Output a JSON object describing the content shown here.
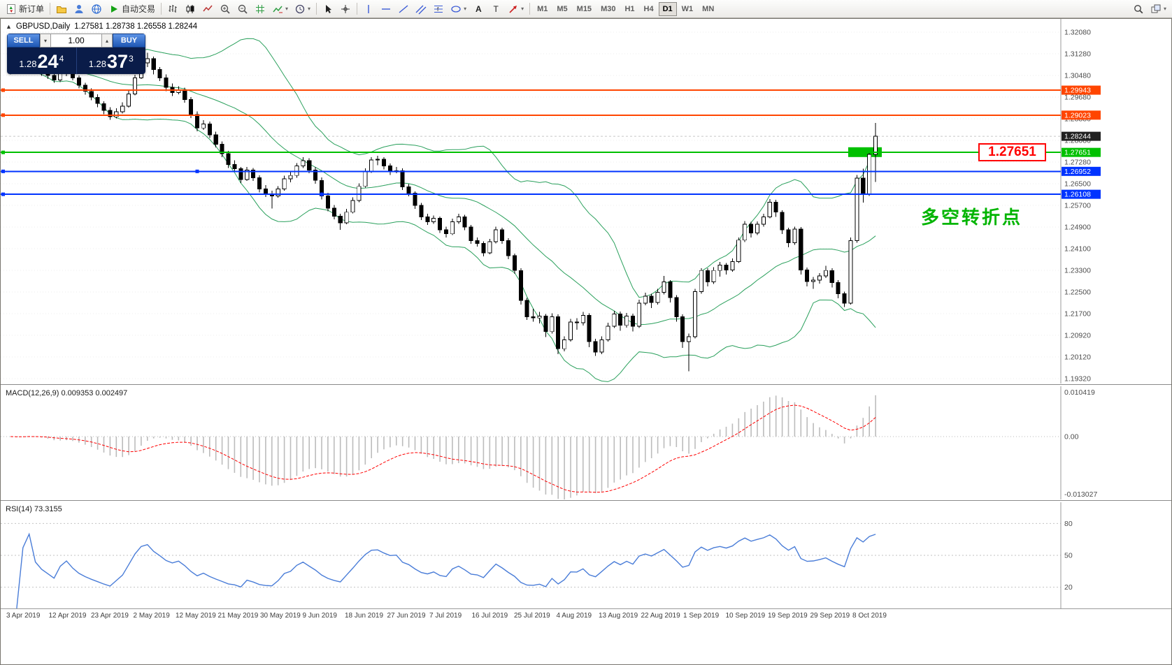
{
  "icons": {
    "collapse": "▲",
    "spin_up": "▴",
    "spin_down": "▾",
    "dropdown": "▾"
  },
  "colors": {
    "line_orange": "#ff4500",
    "line_blue": "#0033ff",
    "line_green": "#00c000",
    "annotation_green": "#00b400",
    "callout_red": "#ff0000",
    "bollinger": "#2aa05c",
    "macd_hist": "#bcbcbc",
    "macd_signal": "#ff0000",
    "rsi_line": "#4a7dd8",
    "panel_navy": "#0a1c49",
    "buy_sell_blue": "#2b63c4",
    "bid_badge": "#202020"
  },
  "toolbar": {
    "active_timeframe": "D1",
    "items": [
      {
        "kind": "button",
        "name": "new-order",
        "icon": "new-order",
        "label": "新订单"
      },
      {
        "kind": "sep"
      },
      {
        "kind": "button",
        "name": "charts-folder",
        "icon": "folder"
      },
      {
        "kind": "button",
        "name": "profiles",
        "icon": "person"
      },
      {
        "kind": "button",
        "name": "community",
        "icon": "globe"
      },
      {
        "kind": "button",
        "name": "autotrading",
        "icon": "play",
        "label": "自动交易"
      },
      {
        "kind": "sep"
      },
      {
        "kind": "button",
        "name": "bar-chart-mode",
        "icon": "bars"
      },
      {
        "kind": "button",
        "name": "candlestick-mode",
        "icon": "candles"
      },
      {
        "kind": "button",
        "name": "line-chart-mode",
        "icon": "line"
      },
      {
        "kind": "button",
        "name": "zoom-in",
        "icon": "zoom-in"
      },
      {
        "kind": "button",
        "name": "zoom-out",
        "icon": "zoom-out"
      },
      {
        "kind": "button",
        "name": "grid-toggle",
        "icon": "grid"
      },
      {
        "kind": "button",
        "name": "indicators",
        "icon": "indicator",
        "dropdown": true
      },
      {
        "kind": "button",
        "name": "periods-menu",
        "icon": "clock",
        "dropdown": true
      },
      {
        "kind": "sep"
      },
      {
        "kind": "button",
        "name": "cursor",
        "icon": "cursor"
      },
      {
        "kind": "button",
        "name": "crosshair",
        "icon": "crosshair"
      },
      {
        "kind": "sep"
      },
      {
        "kind": "button",
        "name": "vertical-line",
        "icon": "vline"
      },
      {
        "kind": "button",
        "name": "horizontal-line",
        "icon": "hline"
      },
      {
        "kind": "button",
        "name": "trendline",
        "icon": "trend"
      },
      {
        "kind": "button",
        "name": "equidistant-channel",
        "icon": "channel"
      },
      {
        "kind": "button",
        "name": "fibonacci",
        "icon": "fibo"
      },
      {
        "kind": "button",
        "name": "geometric-shapes",
        "icon": "ellipse",
        "dropdown": true
      },
      {
        "kind": "button",
        "name": "text",
        "icon": "text"
      },
      {
        "kind": "button",
        "name": "text-label",
        "icon": "label"
      },
      {
        "kind": "button",
        "name": "arrows",
        "icon": "arrow",
        "dropdown": true
      },
      {
        "kind": "sep"
      },
      {
        "kind": "tf",
        "label": "M1"
      },
      {
        "kind": "tf",
        "label": "M5"
      },
      {
        "kind": "tf",
        "label": "M15"
      },
      {
        "kind": "tf",
        "label": "M30"
      },
      {
        "kind": "tf",
        "label": "H1"
      },
      {
        "kind": "tf",
        "label": "H4"
      },
      {
        "kind": "tf",
        "label": "D1"
      },
      {
        "kind": "tf",
        "label": "W1"
      },
      {
        "kind": "tf",
        "label": "MN"
      },
      {
        "kind": "spacer"
      },
      {
        "kind": "button",
        "name": "search",
        "icon": "search"
      },
      {
        "kind": "button",
        "name": "new-window",
        "icon": "window",
        "dropdown": true
      }
    ]
  },
  "chart": {
    "title": "GBPUSD,Daily",
    "ohlc_text": "1.27581 1.28738 1.26558 1.28244",
    "one_click": {
      "sell_label": "SELL",
      "buy_label": "BUY",
      "volume": "1.00",
      "bid": {
        "prefix": "1.28",
        "big": "24",
        "sup": "4"
      },
      "ask": {
        "prefix": "1.28",
        "big": "37",
        "sup": "3"
      }
    },
    "bid_label": "1.28244",
    "callout": "1.27651",
    "annotation": "多空转折点",
    "price_axis": {
      "p_max": 1.32569,
      "p_min": 1.19139,
      "ticks": [
        "1.32080",
        "1.31280",
        "1.30480",
        "1.29680",
        "1.28880",
        "1.28080",
        "1.27280",
        "1.26500",
        "1.25700",
        "1.24900",
        "1.24100",
        "1.23300",
        "1.22500",
        "1.21700",
        "1.20920",
        "1.20120",
        "1.19320"
      ]
    },
    "lines": [
      {
        "price": 1.29943,
        "label": "1.29943",
        "color": "#ff4500",
        "width": 2
      },
      {
        "price": 1.29023,
        "label": "1.29023",
        "color": "#ff4500",
        "width": 2
      },
      {
        "price": 1.27651,
        "label": "1.27651",
        "color": "#00c000",
        "width": 2
      },
      {
        "price": 1.26952,
        "label": "1.26952",
        "color": "#0033ff",
        "width": 2,
        "mid_handle_candle": 30
      },
      {
        "price": 1.26108,
        "label": "1.26108",
        "color": "#0033ff",
        "width": 2,
        "mid_handle_candle": 50
      }
    ],
    "rectangle": {
      "from_candle": 134.6,
      "to_candle": 140,
      "price_top": 1.2784,
      "price_bottom": 1.2748,
      "color": "#00c000"
    }
  },
  "macd_panel": {
    "label": "MACD(12,26,9) 0.009353 0.002497",
    "scale_max": 0.010419,
    "scale_min": -0.013027,
    "axis_labels": [
      "0.010419",
      "0.00",
      "-0.013027"
    ]
  },
  "rsi_panel": {
    "label": "RSI(14) 73.3155",
    "value": 73.3155,
    "levels": [
      80,
      50,
      20
    ],
    "axis_labels": [
      "80",
      "50",
      "20"
    ],
    "range": [
      0,
      100
    ]
  },
  "chart_data": {
    "type": "candlestick",
    "symbol": "GBPUSD",
    "timeframe": "Daily",
    "title": "GBPUSD,Daily",
    "ylim": [
      1.19139,
      1.32569
    ],
    "bid": 1.28244,
    "indicators": [
      {
        "name": "Bollinger Bands",
        "period": 20,
        "deviation": 2
      },
      {
        "name": "MACD",
        "params": "12,26,9",
        "values": [
          0.009353,
          0.002497
        ]
      },
      {
        "name": "RSI",
        "period": 14,
        "value": 73.3155
      }
    ],
    "x_tick_labels": [
      "3 Apr 2019",
      "12 Apr 2019",
      "23 Apr 2019",
      "2 May 2019",
      "12 May 2019",
      "21 May 2019",
      "30 May 2019",
      "9 Jun 2019",
      "18 Jun 2019",
      "27 Jun 2019",
      "7 Jul 2019",
      "16 Jul 2019",
      "25 Jul 2019",
      "4 Aug 2019",
      "13 Aug 2019",
      "22 Aug 2019",
      "1 Sep 2019",
      "10 Sep 2019",
      "19 Sep 2019",
      "29 Sep 2019",
      "8 Oct 2019"
    ],
    "candles": [
      [
        1.306,
        1.3097,
        1.3052,
        1.3085
      ],
      [
        1.3085,
        1.3101,
        1.3059,
        1.307
      ],
      [
        1.307,
        1.3098,
        1.3061,
        1.309
      ],
      [
        1.309,
        1.3122,
        1.3082,
        1.3105
      ],
      [
        1.3105,
        1.3113,
        1.3064,
        1.3075
      ],
      [
        1.3075,
        1.3089,
        1.3047,
        1.306
      ],
      [
        1.306,
        1.3072,
        1.3036,
        1.3048
      ],
      [
        1.3048,
        1.3061,
        1.3021,
        1.3032
      ],
      [
        1.3032,
        1.3067,
        1.3024,
        1.3055
      ],
      [
        1.3055,
        1.3082,
        1.3046,
        1.3068
      ],
      [
        1.3068,
        1.3075,
        1.303,
        1.304
      ],
      [
        1.304,
        1.3049,
        1.3001,
        1.3012
      ],
      [
        1.3012,
        1.3022,
        1.2978,
        1.299
      ],
      [
        1.299,
        1.3001,
        1.2957,
        1.2968
      ],
      [
        1.2968,
        1.2979,
        1.2932,
        1.2945
      ],
      [
        1.2945,
        1.2953,
        1.2906,
        1.292
      ],
      [
        1.292,
        1.2931,
        1.2885,
        1.2896
      ],
      [
        1.2896,
        1.2928,
        1.289,
        1.2915
      ],
      [
        1.2915,
        1.2949,
        1.2908,
        1.2935
      ],
      [
        1.2935,
        1.2992,
        1.293,
        1.298
      ],
      [
        1.298,
        1.3051,
        1.2975,
        1.304
      ],
      [
        1.304,
        1.3103,
        1.3035,
        1.3095
      ],
      [
        1.3095,
        1.3132,
        1.308,
        1.311
      ],
      [
        1.311,
        1.3118,
        1.3052,
        1.307
      ],
      [
        1.307,
        1.308,
        1.3028,
        1.304
      ],
      [
        1.304,
        1.3052,
        1.299,
        1.3005
      ],
      [
        1.3005,
        1.3019,
        1.2972,
        1.2985
      ],
      [
        1.2985,
        1.3008,
        1.2979,
        1.2996
      ],
      [
        1.2996,
        1.3004,
        1.2948,
        1.296
      ],
      [
        1.296,
        1.2969,
        1.2892,
        1.2905
      ],
      [
        1.2905,
        1.2916,
        1.2843,
        1.2855
      ],
      [
        1.2855,
        1.2884,
        1.2848,
        1.287
      ],
      [
        1.287,
        1.2879,
        1.2818,
        1.283
      ],
      [
        1.283,
        1.2841,
        1.2783,
        1.2795
      ],
      [
        1.2795,
        1.2806,
        1.2748,
        1.276
      ],
      [
        1.276,
        1.2771,
        1.2708,
        1.272
      ],
      [
        1.272,
        1.2736,
        1.2692,
        1.2705
      ],
      [
        1.2705,
        1.2712,
        1.2652,
        1.2665
      ],
      [
        1.2665,
        1.2712,
        1.266,
        1.27
      ],
      [
        1.27,
        1.2708,
        1.266,
        1.2672
      ],
      [
        1.2672,
        1.2681,
        1.2618,
        1.263
      ],
      [
        1.263,
        1.2644,
        1.2601,
        1.2612
      ],
      [
        1.2612,
        1.2624,
        1.2559,
        1.2605
      ],
      [
        1.2605,
        1.2641,
        1.2598,
        1.263
      ],
      [
        1.263,
        1.2679,
        1.2624,
        1.2668
      ],
      [
        1.2668,
        1.2694,
        1.2655,
        1.268
      ],
      [
        1.268,
        1.2726,
        1.2672,
        1.2715
      ],
      [
        1.2715,
        1.2748,
        1.2708,
        1.2735
      ],
      [
        1.2735,
        1.2744,
        1.2688,
        1.27
      ],
      [
        1.27,
        1.2711,
        1.265,
        1.2662
      ],
      [
        1.2662,
        1.2673,
        1.2592,
        1.2605
      ],
      [
        1.2605,
        1.2616,
        1.2548,
        1.256
      ],
      [
        1.256,
        1.2571,
        1.2518,
        1.253
      ],
      [
        1.253,
        1.2539,
        1.248,
        1.2506
      ],
      [
        1.2506,
        1.2557,
        1.25,
        1.2545
      ],
      [
        1.2545,
        1.2599,
        1.254,
        1.2588
      ],
      [
        1.2588,
        1.2651,
        1.2582,
        1.264
      ],
      [
        1.264,
        1.2706,
        1.2635,
        1.2695
      ],
      [
        1.2695,
        1.2748,
        1.269,
        1.2737
      ],
      [
        1.2737,
        1.2752,
        1.2718,
        1.274
      ],
      [
        1.274,
        1.2748,
        1.2702,
        1.2715
      ],
      [
        1.2715,
        1.2724,
        1.2682,
        1.2695
      ],
      [
        1.2695,
        1.2711,
        1.2688,
        1.2698
      ],
      [
        1.2698,
        1.2706,
        1.2626,
        1.2638
      ],
      [
        1.2638,
        1.2649,
        1.2603,
        1.2615
      ],
      [
        1.2615,
        1.2622,
        1.2557,
        1.257
      ],
      [
        1.257,
        1.2579,
        1.2516,
        1.2528
      ],
      [
        1.2528,
        1.2539,
        1.2498,
        1.251
      ],
      [
        1.251,
        1.2533,
        1.2502,
        1.2522
      ],
      [
        1.2522,
        1.2529,
        1.2468,
        1.248
      ],
      [
        1.248,
        1.2491,
        1.2452,
        1.2465
      ],
      [
        1.2465,
        1.2521,
        1.246,
        1.251
      ],
      [
        1.251,
        1.2539,
        1.2502,
        1.2528
      ],
      [
        1.2528,
        1.2535,
        1.2478,
        1.249
      ],
      [
        1.249,
        1.2498,
        1.2428,
        1.244
      ],
      [
        1.244,
        1.2452,
        1.2418,
        1.243
      ],
      [
        1.243,
        1.2438,
        1.2382,
        1.2395
      ],
      [
        1.2395,
        1.2447,
        1.239,
        1.2436
      ],
      [
        1.2436,
        1.2492,
        1.243,
        1.248
      ],
      [
        1.248,
        1.2488,
        1.2428,
        1.244
      ],
      [
        1.244,
        1.2449,
        1.2372,
        1.2385
      ],
      [
        1.2385,
        1.2392,
        1.2318,
        1.233
      ],
      [
        1.233,
        1.2339,
        1.2205,
        1.222
      ],
      [
        1.222,
        1.2229,
        1.2148,
        1.216
      ],
      [
        1.216,
        1.2189,
        1.2142,
        1.2155
      ],
      [
        1.2155,
        1.2178,
        1.2135,
        1.2162
      ],
      [
        1.2162,
        1.217,
        1.2085,
        1.2105
      ],
      [
        1.2105,
        1.2172,
        1.2098,
        1.216
      ],
      [
        1.216,
        1.2168,
        1.2022,
        1.2042
      ],
      [
        1.2042,
        1.2088,
        1.2032,
        1.2075
      ],
      [
        1.2075,
        1.2152,
        1.2068,
        1.214
      ],
      [
        1.214,
        1.2155,
        1.2112,
        1.2138
      ],
      [
        1.2138,
        1.2178,
        1.2128,
        1.2165
      ],
      [
        1.2165,
        1.2172,
        1.2048,
        1.2068
      ],
      [
        1.2068,
        1.2079,
        1.2015,
        1.203
      ],
      [
        1.203,
        1.2088,
        1.2022,
        1.2075
      ],
      [
        1.2075,
        1.2138,
        1.2068,
        1.2125
      ],
      [
        1.2125,
        1.2182,
        1.2118,
        1.217
      ],
      [
        1.217,
        1.2179,
        1.2108,
        1.2128
      ],
      [
        1.2128,
        1.2174,
        1.212,
        1.2162
      ],
      [
        1.2162,
        1.2171,
        1.2105,
        1.2125
      ],
      [
        1.2125,
        1.2222,
        1.2118,
        1.221
      ],
      [
        1.221,
        1.2248,
        1.2202,
        1.2235
      ],
      [
        1.2235,
        1.2244,
        1.2192,
        1.2212
      ],
      [
        1.2212,
        1.2262,
        1.2205,
        1.225
      ],
      [
        1.225,
        1.231,
        1.2242,
        1.2288
      ],
      [
        1.2288,
        1.2295,
        1.2212,
        1.223
      ],
      [
        1.223,
        1.2239,
        1.2142,
        1.216
      ],
      [
        1.216,
        1.2168,
        1.2045,
        1.2068
      ],
      [
        1.2068,
        1.2098,
        1.1959,
        1.2086
      ],
      [
        1.2086,
        1.2262,
        1.208,
        1.2252
      ],
      [
        1.2252,
        1.2339,
        1.2245,
        1.233
      ],
      [
        1.233,
        1.2338,
        1.2272,
        1.2288
      ],
      [
        1.2288,
        1.2342,
        1.228,
        1.233
      ],
      [
        1.233,
        1.2362,
        1.2308,
        1.235
      ],
      [
        1.235,
        1.2358,
        1.2315,
        1.2332
      ],
      [
        1.2332,
        1.2375,
        1.2325,
        1.2363
      ],
      [
        1.2363,
        1.2452,
        1.2358,
        1.2442
      ],
      [
        1.2442,
        1.2512,
        1.2435,
        1.25
      ],
      [
        1.25,
        1.2509,
        1.2452,
        1.2468
      ],
      [
        1.2468,
        1.2511,
        1.246,
        1.25
      ],
      [
        1.25,
        1.2539,
        1.2492,
        1.2528
      ],
      [
        1.2528,
        1.2593,
        1.2522,
        1.2582
      ],
      [
        1.2582,
        1.259,
        1.2528,
        1.2545
      ],
      [
        1.2545,
        1.2552,
        1.2465,
        1.248
      ],
      [
        1.248,
        1.2488,
        1.2415,
        1.2432
      ],
      [
        1.2432,
        1.2491,
        1.2425,
        1.2482
      ],
      [
        1.2482,
        1.249,
        1.2315,
        1.2332
      ],
      [
        1.2332,
        1.2341,
        1.2272,
        1.229
      ],
      [
        1.229,
        1.2306,
        1.2262,
        1.2295
      ],
      [
        1.2295,
        1.2321,
        1.2282,
        1.231
      ],
      [
        1.231,
        1.2348,
        1.2302,
        1.233
      ],
      [
        1.233,
        1.2338,
        1.2268,
        1.2286
      ],
      [
        1.2286,
        1.2295,
        1.2228,
        1.2245
      ],
      [
        1.2245,
        1.2252,
        1.2196,
        1.221
      ],
      [
        1.221,
        1.2452,
        1.2204,
        1.244
      ],
      [
        1.244,
        1.2682,
        1.2432,
        1.267
      ],
      [
        1.267,
        1.2705,
        1.258,
        1.2612
      ],
      [
        1.2612,
        1.2768,
        1.2605,
        1.2758
      ],
      [
        1.27581,
        1.28738,
        1.26558,
        1.28244
      ]
    ]
  }
}
